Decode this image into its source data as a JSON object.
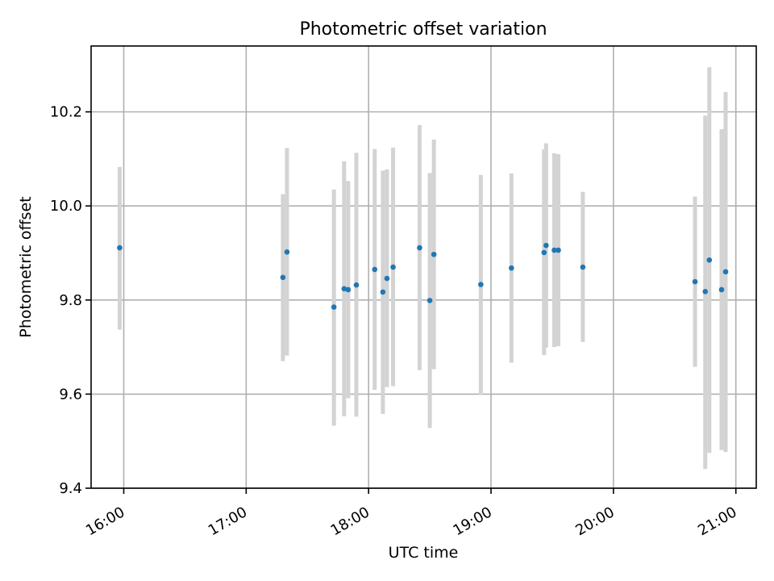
{
  "chart_data": {
    "type": "scatter",
    "title": "Photometric offset variation",
    "xlabel": "UTC time",
    "ylabel": "Photometric offset",
    "xlim": [
      "15:44",
      "21:10"
    ],
    "ylim": [
      9.4,
      10.34
    ],
    "x_ticks": [
      "16:00",
      "17:00",
      "18:00",
      "19:00",
      "20:00",
      "21:00"
    ],
    "y_ticks": [
      "9.4",
      "9.6",
      "9.8",
      "10.0",
      "10.2"
    ],
    "grid": true,
    "colors": {
      "points": "#1f77b4",
      "errorbars": "#d3d3d3"
    },
    "points": [
      {
        "t": "15:58",
        "y": 9.911,
        "lo": 9.737,
        "hi": 10.083
      },
      {
        "t": "17:18",
        "y": 9.848,
        "lo": 9.67,
        "hi": 10.025
      },
      {
        "t": "17:20",
        "y": 9.902,
        "lo": 9.682,
        "hi": 10.123
      },
      {
        "t": "17:43",
        "y": 9.785,
        "lo": 9.533,
        "hi": 10.035
      },
      {
        "t": "17:48",
        "y": 9.824,
        "lo": 9.553,
        "hi": 10.095
      },
      {
        "t": "17:50",
        "y": 9.822,
        "lo": 9.591,
        "hi": 10.053
      },
      {
        "t": "17:54",
        "y": 9.832,
        "lo": 9.552,
        "hi": 10.113
      },
      {
        "t": "18:03",
        "y": 9.865,
        "lo": 9.609,
        "hi": 10.121
      },
      {
        "t": "18:07",
        "y": 9.817,
        "lo": 9.558,
        "hi": 10.075
      },
      {
        "t": "18:09",
        "y": 9.846,
        "lo": 9.615,
        "hi": 10.078
      },
      {
        "t": "18:12",
        "y": 9.87,
        "lo": 9.617,
        "hi": 10.124
      },
      {
        "t": "18:25",
        "y": 9.911,
        "lo": 9.651,
        "hi": 10.172
      },
      {
        "t": "18:30",
        "y": 9.799,
        "lo": 9.528,
        "hi": 10.07
      },
      {
        "t": "18:32",
        "y": 9.897,
        "lo": 9.653,
        "hi": 10.141
      },
      {
        "t": "18:55",
        "y": 9.833,
        "lo": 9.598,
        "hi": 10.066
      },
      {
        "t": "19:10",
        "y": 9.868,
        "lo": 9.667,
        "hi": 10.069
      },
      {
        "t": "19:26",
        "y": 9.901,
        "lo": 9.683,
        "hi": 10.12
      },
      {
        "t": "19:27",
        "y": 9.916,
        "lo": 9.699,
        "hi": 10.133
      },
      {
        "t": "19:31",
        "y": 9.906,
        "lo": 9.7,
        "hi": 10.112
      },
      {
        "t": "19:33",
        "y": 9.906,
        "lo": 9.702,
        "hi": 10.11
      },
      {
        "t": "19:45",
        "y": 9.87,
        "lo": 9.711,
        "hi": 10.03
      },
      {
        "t": "20:40",
        "y": 9.839,
        "lo": 9.658,
        "hi": 10.02
      },
      {
        "t": "20:45",
        "y": 9.818,
        "lo": 9.441,
        "hi": 10.192
      },
      {
        "t": "20:47",
        "y": 9.885,
        "lo": 9.475,
        "hi": 10.295
      },
      {
        "t": "20:53",
        "y": 9.822,
        "lo": 9.481,
        "hi": 10.163
      },
      {
        "t": "20:55",
        "y": 9.86,
        "lo": 9.477,
        "hi": 10.242
      }
    ]
  }
}
